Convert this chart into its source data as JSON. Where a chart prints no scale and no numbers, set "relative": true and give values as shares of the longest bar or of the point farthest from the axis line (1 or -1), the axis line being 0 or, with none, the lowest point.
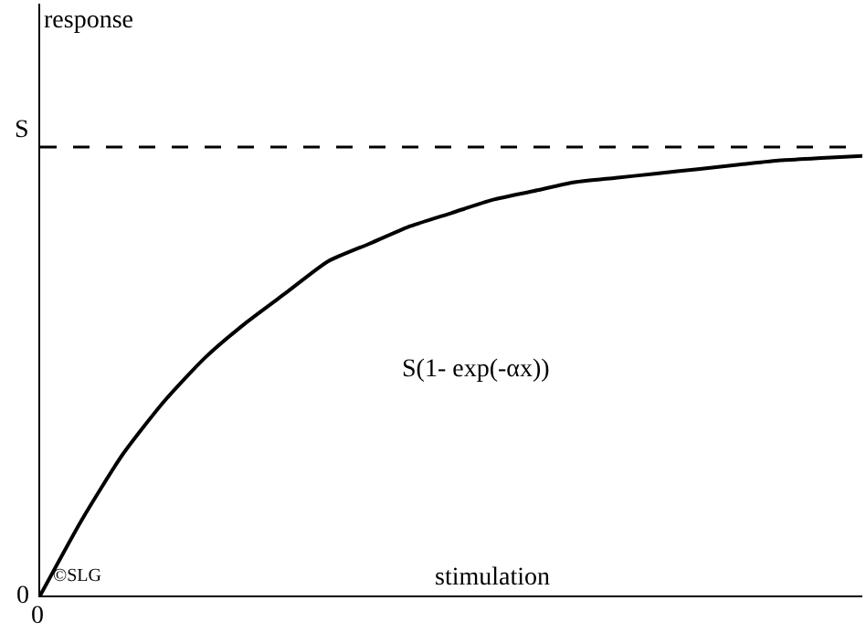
{
  "chart_data": {
    "type": "line",
    "xlabel": "stimulation",
    "ylabel": "response",
    "relative": true,
    "categories": [
      null,
      null,
      null,
      null,
      null,
      null,
      null,
      null,
      null,
      null,
      null,
      null,
      null,
      null,
      null,
      null,
      null,
      null,
      null,
      null,
      null
    ],
    "series": [
      {
        "color": "#000000",
        "values": [
          0,
          0.17,
          0.32,
          0.44,
          0.54,
          0.62,
          0.69,
          0.76,
          0.8,
          0.84,
          0.87,
          0.9,
          0.92,
          0.94,
          0.95,
          0.96,
          0.97,
          0.98,
          0.99,
          0.995,
          1
        ]
      }
    ],
    "ref_lines": [
      {
        "axis": "y",
        "value": 1.02,
        "label": "S",
        "color": "#000000",
        "line_style": "dashed"
      }
    ],
    "annotations": [
      "S(1- exp(-αx))",
      "©SLG",
      "0",
      "0"
    ],
    "grid": false,
    "marker": "none",
    "line_style": "solid"
  }
}
